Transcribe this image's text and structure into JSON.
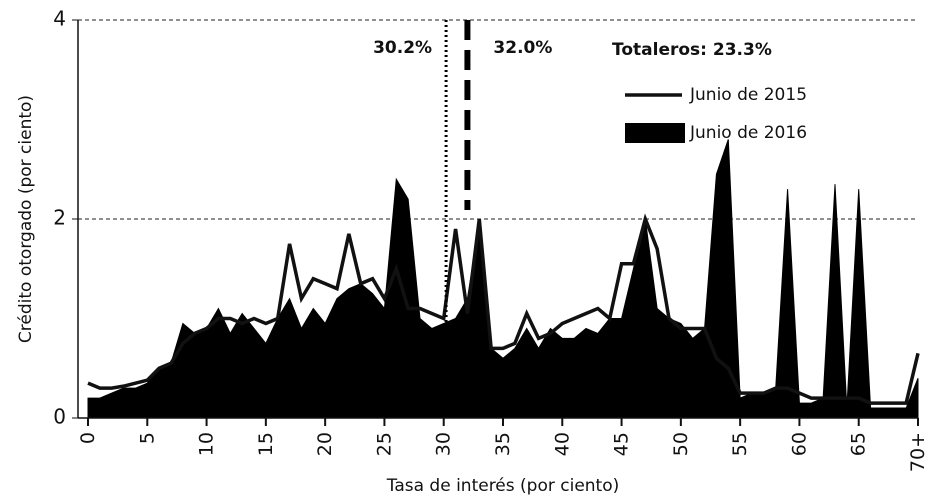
{
  "chart_data": {
    "type": "line_area",
    "y_label": "Crédito otorgado (por ciento)",
    "x_label": "Tasa de interés (por ciento)",
    "annotation": "Totaleros: 23.3%",
    "x": [
      0,
      1,
      2,
      3,
      4,
      5,
      6,
      7,
      8,
      9,
      10,
      11,
      12,
      13,
      14,
      15,
      16,
      17,
      18,
      19,
      20,
      21,
      22,
      23,
      24,
      25,
      26,
      27,
      28,
      29,
      30,
      31,
      32,
      33,
      34,
      35,
      36,
      37,
      38,
      39,
      40,
      41,
      42,
      43,
      44,
      45,
      46,
      47,
      48,
      49,
      50,
      51,
      52,
      53,
      54,
      55,
      56,
      57,
      58,
      59,
      60,
      61,
      62,
      63,
      64,
      65,
      66,
      67,
      68,
      69,
      70
    ],
    "series": [
      {
        "name": "Junio de 2015",
        "style": "line",
        "color": "#111111",
        "values": [
          0.35,
          0.3,
          0.3,
          0.32,
          0.35,
          0.38,
          0.5,
          0.55,
          0.75,
          0.85,
          0.9,
          1.0,
          1.0,
          0.95,
          1.0,
          0.95,
          1.0,
          1.75,
          1.2,
          1.4,
          1.35,
          1.3,
          1.85,
          1.35,
          1.4,
          1.2,
          1.5,
          1.1,
          1.1,
          1.05,
          1.0,
          1.9,
          1.05,
          2.0,
          0.7,
          0.7,
          0.75,
          1.05,
          0.8,
          0.85,
          0.95,
          1.0,
          1.05,
          1.1,
          1.0,
          1.55,
          1.55,
          2.0,
          1.7,
          1.0,
          0.9,
          0.9,
          0.9,
          0.6,
          0.5,
          0.25,
          0.25,
          0.25,
          0.3,
          0.3,
          0.25,
          0.2,
          0.2,
          0.2,
          0.2,
          0.2,
          0.15,
          0.15,
          0.15,
          0.15,
          0.65
        ]
      },
      {
        "name": "Junio de 2016",
        "style": "area",
        "color": "#000000",
        "values": [
          0.2,
          0.2,
          0.25,
          0.3,
          0.3,
          0.35,
          0.5,
          0.55,
          0.95,
          0.85,
          0.9,
          1.1,
          0.85,
          1.05,
          0.9,
          0.75,
          1.0,
          1.2,
          0.9,
          1.1,
          0.95,
          1.2,
          1.3,
          1.35,
          1.25,
          1.1,
          2.4,
          2.2,
          1.0,
          0.9,
          0.95,
          1.0,
          1.2,
          1.95,
          0.7,
          0.6,
          0.7,
          0.9,
          0.7,
          0.9,
          0.8,
          0.8,
          0.9,
          0.85,
          1.0,
          1.0,
          1.5,
          2.0,
          1.1,
          1.0,
          0.95,
          0.8,
          0.9,
          2.45,
          2.8,
          0.2,
          0.25,
          0.25,
          0.3,
          2.3,
          0.15,
          0.15,
          0.2,
          2.35,
          0.1,
          2.3,
          0.1,
          0.1,
          0.1,
          0.1,
          0.4
        ]
      }
    ],
    "reference_lines": [
      {
        "value": 30.2,
        "label": "30.2%",
        "style": "dotted"
      },
      {
        "value": 32.0,
        "label": "32.0%",
        "style": "dashed"
      }
    ],
    "xlim": [
      0,
      70
    ],
    "xticks": [
      0,
      5,
      10,
      15,
      20,
      25,
      30,
      35,
      40,
      45,
      50,
      55,
      60,
      65,
      {
        "value": 70,
        "label": "70+"
      }
    ],
    "ylim": [
      0,
      4
    ],
    "yticks": [
      0,
      2,
      4
    ],
    "grid": true
  }
}
